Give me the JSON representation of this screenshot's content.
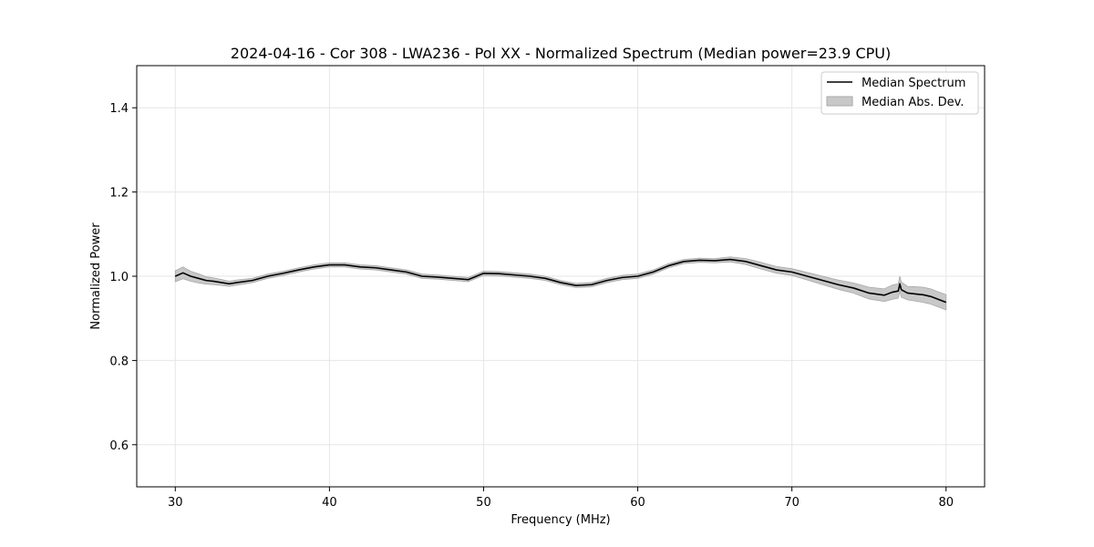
{
  "chart_data": {
    "type": "line",
    "title": "2024-04-16 - Cor 308 - LWA236 - Pol XX - Normalized Spectrum (Median power=23.9 CPU)",
    "xlabel": "Frequency (MHz)",
    "ylabel": "Normalized Power",
    "xlim": [
      27.5,
      82.5
    ],
    "ylim": [
      0.5,
      1.5
    ],
    "xticks": [
      30,
      40,
      50,
      60,
      70,
      80
    ],
    "yticks": [
      0.6,
      0.8,
      1.0,
      1.2,
      1.4
    ],
    "xtick_labels": [
      "30",
      "40",
      "50",
      "60",
      "70",
      "80"
    ],
    "ytick_labels": [
      "0.6",
      "0.8",
      "1.0",
      "1.2",
      "1.4"
    ],
    "grid": true,
    "legend_position": "top-right",
    "colors": {
      "line": "#000000",
      "band_fill": "#c8c8c8",
      "band_edge": "#a8a8a8",
      "grid": "#e6e6e6"
    },
    "series": [
      {
        "name": "Median Spectrum",
        "kind": "line",
        "x": [
          30,
          30.5,
          31,
          31.5,
          32,
          32.5,
          33,
          33.5,
          34,
          35,
          36,
          37,
          38,
          39,
          40,
          41,
          42,
          43,
          44,
          45,
          46,
          47,
          48,
          49,
          50,
          51,
          52,
          53,
          54,
          55,
          56,
          57,
          58,
          59,
          60,
          61,
          62,
          63,
          64,
          65,
          66,
          67,
          68,
          69,
          70,
          71,
          72,
          73,
          74,
          75,
          76,
          76.5,
          76.9,
          77,
          77.1,
          77.5,
          78,
          78.5,
          79,
          79.5,
          80
        ],
        "y": [
          1.0,
          1.008,
          1.0,
          0.995,
          0.99,
          0.988,
          0.985,
          0.982,
          0.985,
          0.99,
          1.0,
          1.007,
          1.015,
          1.022,
          1.027,
          1.027,
          1.022,
          1.02,
          1.015,
          1.01,
          1.0,
          0.998,
          0.995,
          0.992,
          1.007,
          1.006,
          1.003,
          1.0,
          0.995,
          0.985,
          0.978,
          0.98,
          0.99,
          0.997,
          1.0,
          1.01,
          1.025,
          1.035,
          1.038,
          1.037,
          1.04,
          1.035,
          1.025,
          1.015,
          1.01,
          1.0,
          0.99,
          0.98,
          0.972,
          0.96,
          0.955,
          0.962,
          0.965,
          0.982,
          0.968,
          0.96,
          0.958,
          0.956,
          0.952,
          0.945,
          0.938
        ]
      },
      {
        "name": "Median Abs. Dev.",
        "kind": "band",
        "x": [
          30,
          30.5,
          31,
          31.5,
          32,
          32.5,
          33,
          33.5,
          34,
          35,
          36,
          37,
          38,
          39,
          40,
          41,
          42,
          43,
          44,
          45,
          46,
          47,
          48,
          49,
          50,
          51,
          52,
          53,
          54,
          55,
          56,
          57,
          58,
          59,
          60,
          61,
          62,
          63,
          64,
          65,
          66,
          67,
          68,
          69,
          70,
          71,
          72,
          73,
          74,
          75,
          76,
          76.5,
          76.9,
          77,
          77.1,
          77.5,
          78,
          78.5,
          79,
          79.5,
          80
        ],
        "y_low": [
          0.987,
          0.994,
          0.988,
          0.984,
          0.981,
          0.98,
          0.978,
          0.976,
          0.979,
          0.985,
          0.995,
          1.002,
          1.01,
          1.017,
          1.022,
          1.022,
          1.017,
          1.015,
          1.01,
          1.005,
          0.995,
          0.993,
          0.99,
          0.987,
          1.002,
          1.001,
          0.998,
          0.995,
          0.99,
          0.98,
          0.973,
          0.975,
          0.985,
          0.992,
          0.995,
          1.005,
          1.02,
          1.03,
          1.033,
          1.032,
          1.034,
          1.028,
          1.017,
          1.007,
          1.002,
          0.991,
          0.98,
          0.969,
          0.96,
          0.946,
          0.94,
          0.945,
          0.948,
          0.965,
          0.95,
          0.944,
          0.941,
          0.938,
          0.934,
          0.927,
          0.92
        ],
        "y_high": [
          1.013,
          1.022,
          1.012,
          1.006,
          0.999,
          0.996,
          0.992,
          0.988,
          0.991,
          0.995,
          1.005,
          1.012,
          1.02,
          1.027,
          1.032,
          1.032,
          1.027,
          1.025,
          1.02,
          1.015,
          1.005,
          1.003,
          1.0,
          0.997,
          1.012,
          1.011,
          1.008,
          1.005,
          1.0,
          0.99,
          0.983,
          0.985,
          0.995,
          1.002,
          1.005,
          1.015,
          1.03,
          1.04,
          1.043,
          1.042,
          1.046,
          1.042,
          1.033,
          1.023,
          1.018,
          1.009,
          1.0,
          0.991,
          0.984,
          0.974,
          0.97,
          0.979,
          0.982,
          1.0,
          0.986,
          0.976,
          0.975,
          0.974,
          0.97,
          0.963,
          0.956
        ]
      }
    ]
  }
}
